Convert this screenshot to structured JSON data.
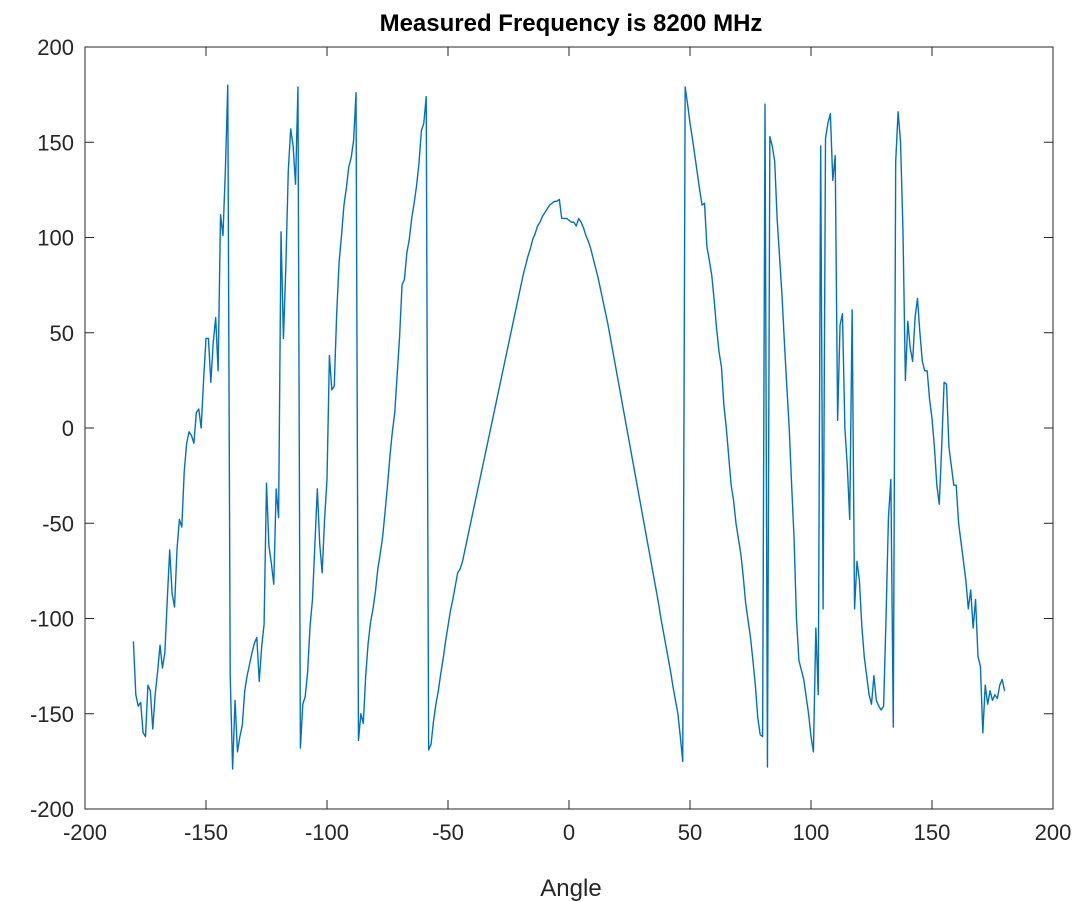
{
  "chart_data": {
    "type": "line",
    "title": "Measured Frequency is 8200 MHz",
    "xlabel": "Angle",
    "ylabel": "",
    "xlim": [
      -200,
      200
    ],
    "ylim": [
      -200,
      200
    ],
    "xticks": [
      -200,
      -150,
      -100,
      -50,
      0,
      50,
      100,
      150,
      200
    ],
    "yticks": [
      -200,
      -150,
      -100,
      -50,
      0,
      50,
      100,
      150,
      200
    ],
    "grid": false,
    "legend": "none",
    "line_color": "#0072BD",
    "series": [
      {
        "x": [
          -180,
          -179,
          -178,
          -177,
          -176,
          -175,
          -174,
          -173,
          -172,
          -171,
          -170,
          -169,
          -168,
          -167,
          -166,
          -165,
          -164,
          -163,
          -162,
          -161,
          -160,
          -159,
          -158,
          -157,
          -156,
          -155,
          -154,
          -153,
          -152,
          -151,
          -150,
          -149,
          -148,
          -147,
          -146,
          -145,
          -144,
          -143,
          -142,
          -141,
          -140,
          -139,
          -138,
          -137,
          -136,
          -135,
          -134,
          -133,
          -132,
          -131,
          -130,
          -129,
          -128,
          -127,
          -126,
          -125,
          -124,
          -123,
          -122,
          -121,
          -120,
          -119,
          -118,
          -117,
          -116,
          -115,
          -114,
          -113,
          -112,
          -111,
          -110,
          -109,
          -108,
          -107,
          -106,
          -105,
          -104,
          -103,
          -102,
          -101,
          -100,
          -99,
          -98,
          -97,
          -96,
          -95,
          -94,
          -93,
          -92,
          -91,
          -90,
          -89,
          -88,
          -87,
          -86,
          -85,
          -84,
          -83,
          -82,
          -81,
          -80,
          -79,
          -78,
          -77,
          -76,
          -75,
          -74,
          -73,
          -72,
          -71,
          -70,
          -69,
          -68,
          -67,
          -66,
          -65,
          -64,
          -63,
          -62,
          -61,
          -60,
          -59,
          -58,
          -57,
          -56,
          -55,
          -54,
          -53,
          -52,
          -51,
          -50,
          -49,
          -48,
          -47,
          -46,
          -45,
          -44,
          -43,
          -42,
          -41,
          -40,
          -39,
          -38,
          -37,
          -36,
          -35,
          -34,
          -33,
          -32,
          -31,
          -30,
          -29,
          -28,
          -27,
          -26,
          -25,
          -24,
          -23,
          -22,
          -21,
          -20,
          -19,
          -18,
          -17,
          -16,
          -15,
          -14,
          -13,
          -12,
          -11,
          -10,
          -9,
          -8,
          -7,
          -6,
          -5,
          -4,
          -3,
          -2,
          -1,
          0,
          1,
          2,
          3,
          4,
          5,
          6,
          7,
          8,
          9,
          10,
          11,
          12,
          13,
          14,
          15,
          16,
          17,
          18,
          19,
          20,
          21,
          22,
          23,
          24,
          25,
          26,
          27,
          28,
          29,
          30,
          31,
          32,
          33,
          34,
          35,
          36,
          37,
          38,
          39,
          40,
          41,
          42,
          43,
          44,
          45,
          46,
          47,
          48,
          49,
          50,
          51,
          52,
          53,
          54,
          55,
          56,
          57,
          58,
          59,
          60,
          61,
          62,
          63,
          64,
          65,
          66,
          67,
          68,
          69,
          70,
          71,
          72,
          73,
          74,
          75,
          76,
          77,
          78,
          79,
          80,
          81,
          82,
          83,
          84,
          85,
          86,
          87,
          88,
          89,
          90,
          91,
          92,
          93,
          94,
          95,
          96,
          97,
          98,
          99,
          100,
          101,
          102,
          103,
          104,
          105,
          106,
          107,
          108,
          109,
          110,
          111,
          112,
          113,
          114,
          115,
          116,
          117,
          118,
          119,
          120,
          121,
          122,
          123,
          124,
          125,
          126,
          127,
          128,
          129,
          130,
          131,
          132,
          133,
          134,
          135,
          136,
          137,
          138,
          139,
          140,
          141,
          142,
          143,
          144,
          145,
          146,
          147,
          148,
          149,
          150,
          151,
          152,
          153,
          154,
          155,
          156,
          157,
          158,
          159,
          160,
          161,
          162,
          163,
          164,
          165,
          166,
          167,
          168,
          169,
          170,
          171,
          172,
          173,
          174,
          175,
          176,
          177,
          178,
          179,
          180
        ],
        "y": [
          -112,
          -140,
          -146,
          -144,
          -160,
          -162,
          -135,
          -138,
          -158,
          -140,
          -128,
          -114,
          -126,
          -118,
          -90,
          -64,
          -87,
          -94,
          -64,
          -48,
          -52,
          -23,
          -8,
          -2,
          -4,
          -8,
          8,
          10,
          0,
          25,
          47,
          47,
          24,
          45,
          58,
          30,
          112,
          101,
          135,
          180,
          -130,
          -179,
          -143,
          -170,
          -162,
          -156,
          -138,
          -130,
          -124,
          -118,
          -113,
          -110,
          -133,
          -115,
          -103,
          -29,
          -62,
          -71,
          -82,
          -32,
          -47,
          103,
          47,
          85,
          135,
          157,
          148,
          128,
          179,
          -168,
          -145,
          -141,
          -128,
          -104,
          -90,
          -61,
          -32,
          -61,
          -76,
          -48,
          -27,
          38,
          20,
          22,
          60,
          87,
          101,
          117,
          126,
          137,
          142,
          151,
          176,
          -164,
          -150,
          -155,
          -130,
          -113,
          -102,
          -95,
          -86,
          -74,
          -66,
          -57,
          -44,
          -30,
          -15,
          -2,
          8,
          28,
          48,
          75,
          78,
          92,
          99,
          110,
          118,
          127,
          139,
          156,
          160,
          174,
          -169,
          -166,
          -154,
          -145,
          -138,
          -129,
          -121,
          -112,
          -104,
          -96,
          -90,
          -83,
          -76,
          -74,
          -70,
          -64,
          -58,
          -52,
          -46,
          -40,
          -34,
          -28,
          -22,
          -16,
          -10,
          -4,
          2,
          8,
          14,
          20,
          26,
          32,
          38,
          44,
          50,
          56,
          62,
          68,
          74,
          80,
          85,
          90,
          94,
          99,
          102,
          106,
          108,
          111,
          113,
          115,
          117,
          118,
          119,
          119,
          120,
          110,
          110,
          110,
          109,
          108,
          108,
          106,
          110,
          108,
          105,
          101,
          98,
          94,
          89,
          84,
          79,
          73,
          67,
          61,
          55,
          48,
          41,
          34,
          27,
          20,
          13,
          6,
          -1,
          -8,
          -15,
          -22,
          -29,
          -36,
          -43,
          -50,
          -57,
          -64,
          -71,
          -78,
          -85,
          -92,
          -100,
          -107,
          -114,
          -121,
          -128,
          -136,
          -143,
          -150,
          -162,
          -175,
          179,
          170,
          160,
          152,
          143,
          134,
          125,
          117,
          118,
          95,
          88,
          80,
          67,
          52,
          40,
          32,
          12,
          0,
          -15,
          -30,
          -38,
          -50,
          -58,
          -66,
          -78,
          -92,
          -101,
          -110,
          -122,
          -135,
          -152,
          -161,
          -162,
          170,
          -178,
          153,
          148,
          140,
          110,
          90,
          70,
          45,
          22,
          0,
          -30,
          -58,
          -100,
          -122,
          -127,
          -132,
          -141,
          -150,
          -162,
          -170,
          -105,
          -140,
          148,
          -95,
          152,
          160,
          165,
          130,
          143,
          4,
          54,
          60,
          0,
          -20,
          -48,
          62,
          -95,
          -70,
          -80,
          -104,
          -120,
          -130,
          -140,
          -145,
          -130,
          -143,
          -146,
          -148,
          -146,
          -100,
          -47,
          -27,
          -157,
          140,
          166,
          150,
          104,
          25,
          56,
          42,
          35,
          58,
          68,
          50,
          35,
          30,
          30,
          15,
          5,
          -10,
          -30,
          -40,
          -10,
          24,
          23,
          -10,
          -20,
          -30,
          -30,
          -50,
          -60,
          -70,
          -80,
          -95,
          -85,
          -105,
          -90,
          -120,
          -125,
          -160,
          -135,
          -145,
          -138,
          -143,
          -140,
          -142,
          -135,
          -132,
          -138
        ]
      }
    ]
  }
}
